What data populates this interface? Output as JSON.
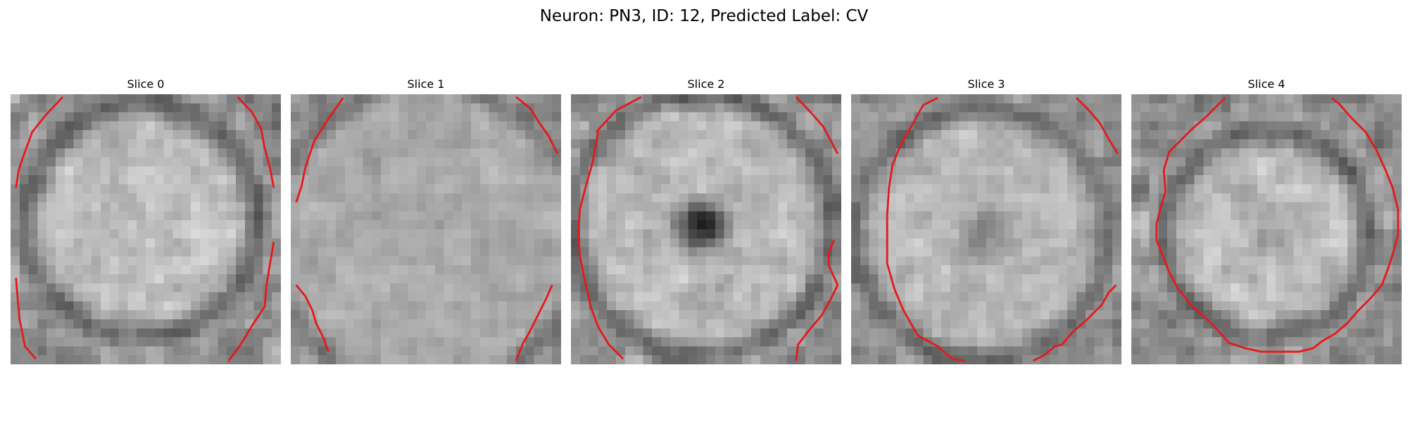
{
  "figure": {
    "title": "Neuron: PN3, ID: 12, Predicted Label: CV"
  },
  "panels": [
    {
      "label": "Slice 0"
    },
    {
      "label": "Slice 1"
    },
    {
      "label": "Slice 2"
    },
    {
      "label": "Slice 3"
    },
    {
      "label": "Slice 4"
    }
  ],
  "colors": {
    "contour": "#e41a1c",
    "colormap": "grayscale"
  }
}
